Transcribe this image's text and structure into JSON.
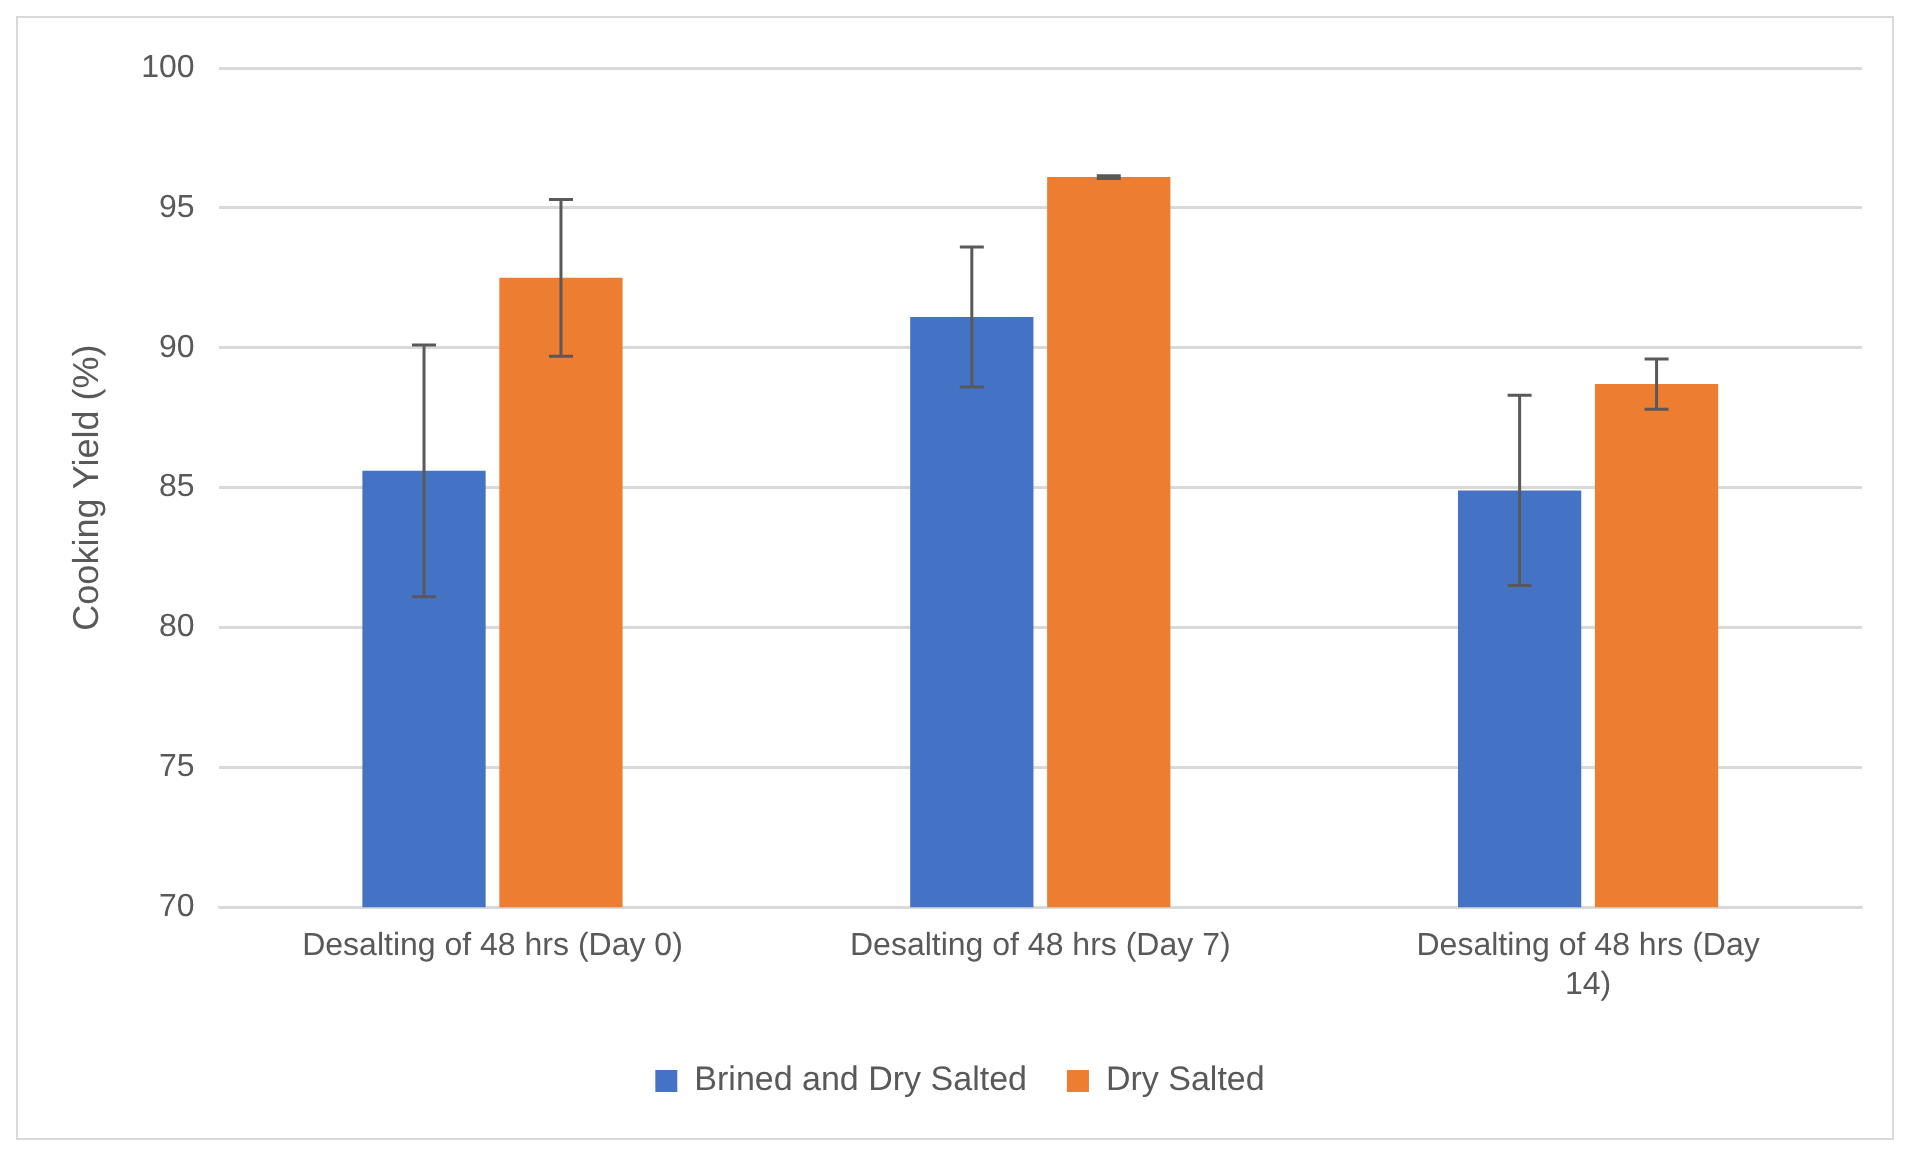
{
  "chart_data": {
    "type": "bar",
    "ylabel": "Cooking Yield (%)",
    "categories": [
      "Desalting of 48 hrs (Day 0)",
      "Desalting of 48 hrs (Day 7)",
      "Desalting of 48 hrs (Day 14)"
    ],
    "series": [
      {
        "name": "Brined and Dry Salted",
        "color": "#4472c4",
        "values": [
          85.6,
          91.1,
          84.9
        ],
        "errors": [
          4.5,
          2.5,
          3.4
        ]
      },
      {
        "name": "Dry Salted",
        "color": "#ed7d31",
        "values": [
          92.5,
          96.1,
          88.7
        ],
        "errors": [
          2.8,
          0.05,
          0.9
        ]
      }
    ],
    "ylim": [
      70,
      100
    ],
    "yticks": [
      70,
      75,
      80,
      85,
      90,
      95,
      100
    ],
    "grid": "y",
    "legend": "bottom"
  }
}
